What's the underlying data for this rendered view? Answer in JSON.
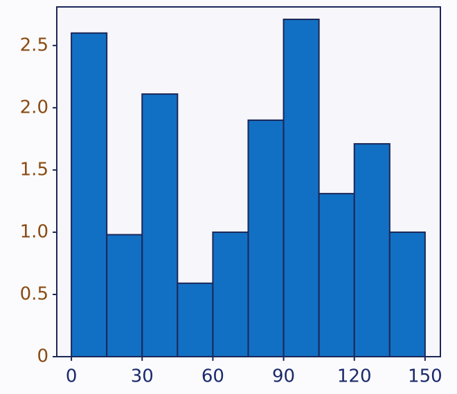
{
  "chart_data": {
    "type": "histogram",
    "bins": [
      0,
      15,
      30,
      45,
      60,
      75,
      90,
      105,
      120,
      135,
      150
    ],
    "values": [
      2.6,
      0.98,
      2.11,
      0.59,
      1.0,
      1.9,
      2.71,
      1.31,
      1.71,
      1.0
    ],
    "color": "#1270c4",
    "edge_color": "#1b2757",
    "xlim": [
      -6.2,
      156.5
    ],
    "xticks": [
      0,
      30,
      60,
      90,
      120,
      150
    ],
    "ylim": [
      0,
      2.81
    ],
    "yticks": [
      0,
      0.5,
      {
        "value": 1,
        "label": "1.0"
      },
      1.5,
      {
        "value": 2,
        "label": "2.0"
      },
      2.5
    ],
    "grid": false
  }
}
